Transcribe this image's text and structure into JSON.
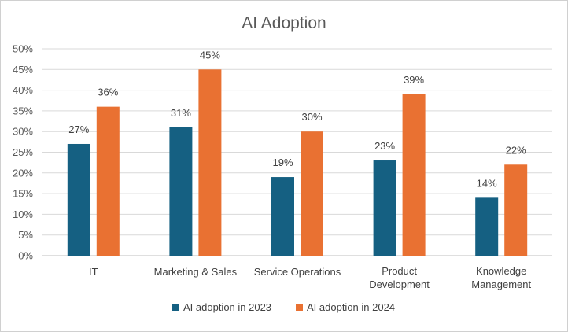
{
  "chart_data": {
    "type": "bar",
    "title": "AI Adoption",
    "categories": [
      [
        "IT"
      ],
      [
        "Marketing & Sales"
      ],
      [
        "Service Operations"
      ],
      [
        "Product",
        "Development"
      ],
      [
        "Knowledge",
        "Management"
      ]
    ],
    "series": [
      {
        "name": "AI adoption in 2023",
        "color": "#156082",
        "values": [
          27,
          31,
          19,
          23,
          14
        ],
        "labels": [
          "27%",
          "31%",
          "19%",
          "23%",
          "14%"
        ]
      },
      {
        "name": "AI adoption in 2024",
        "color": "#E97132",
        "values": [
          36,
          45,
          30,
          39,
          22
        ],
        "labels": [
          "36%",
          "45%",
          "30%",
          "39%",
          "22%"
        ]
      }
    ],
    "y_ticks": [
      "0%",
      "5%",
      "10%",
      "15%",
      "20%",
      "25%",
      "30%",
      "35%",
      "40%",
      "45%",
      "50%"
    ],
    "ylim": [
      0,
      50
    ],
    "y_step": 5,
    "grid": true,
    "gridline_color": "#d9d9d9",
    "legend_position": "bottom",
    "xlabel": "",
    "ylabel": ""
  }
}
